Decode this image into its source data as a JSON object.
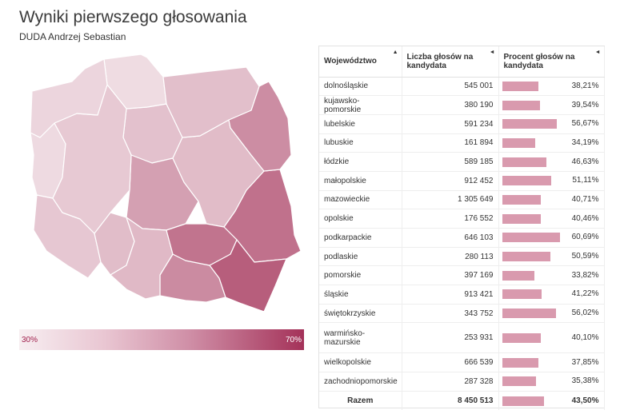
{
  "title": "Wyniki pierwszego głosowania",
  "subtitle": "DUDA Andrzej Sebastian",
  "scale": {
    "min_label": "30%",
    "max_label": "70%",
    "min": 30,
    "max": 70,
    "low_color": "#f7eef1",
    "high_color": "#a43259"
  },
  "table": {
    "headers": {
      "region": "Województwo",
      "votes": "Liczba głosów na kandydata",
      "percent": "Procent głosów na kandydata"
    },
    "sort_icons": {
      "region": "▲",
      "votes": "◄",
      "percent": "◄"
    },
    "bar_color": "#d99aae",
    "total": {
      "label": "Razem",
      "votes": "8 450 513",
      "percent": "43,50%",
      "value": 43.5
    }
  },
  "chart_data": {
    "type": "table",
    "title": "Wyniki pierwszego głosowania",
    "subtitle": "DUDA Andrzej Sebastian",
    "columns": [
      "Województwo",
      "Liczba głosów na kandydata",
      "Procent głosów na kandydata"
    ],
    "rows": [
      {
        "region": "dolnośląskie",
        "votes": "545 001",
        "percent": "38,21%",
        "value": 38.21
      },
      {
        "region": "kujawsko-pomorskie",
        "votes": "380 190",
        "percent": "39,54%",
        "value": 39.54
      },
      {
        "region": "lubelskie",
        "votes": "591 234",
        "percent": "56,67%",
        "value": 56.67
      },
      {
        "region": "lubuskie",
        "votes": "161 894",
        "percent": "34,19%",
        "value": 34.19
      },
      {
        "region": "łódzkie",
        "votes": "589 185",
        "percent": "46,63%",
        "value": 46.63
      },
      {
        "region": "małopolskie",
        "votes": "912 452",
        "percent": "51,11%",
        "value": 51.11
      },
      {
        "region": "mazowieckie",
        "votes": "1 305 649",
        "percent": "40,71%",
        "value": 40.71
      },
      {
        "region": "opolskie",
        "votes": "176 552",
        "percent": "40,46%",
        "value": 40.46
      },
      {
        "region": "podkarpackie",
        "votes": "646 103",
        "percent": "60,69%",
        "value": 60.69
      },
      {
        "region": "podlaskie",
        "votes": "280 113",
        "percent": "50,59%",
        "value": 50.59
      },
      {
        "region": "pomorskie",
        "votes": "397 169",
        "percent": "33,82%",
        "value": 33.82
      },
      {
        "region": "śląskie",
        "votes": "913 421",
        "percent": "41,22%",
        "value": 41.22
      },
      {
        "region": "świętokrzyskie",
        "votes": "343 752",
        "percent": "56,02%",
        "value": 56.02
      },
      {
        "region": "warmińsko-mazurskie",
        "votes": "253 931",
        "percent": "40,10%",
        "value": 40.1
      },
      {
        "region": "wielkopolskie",
        "votes": "666 539",
        "percent": "37,85%",
        "value": 37.85
      },
      {
        "region": "zachodniopomorskie",
        "votes": "287 328",
        "percent": "35,38%",
        "value": 35.38
      }
    ]
  }
}
